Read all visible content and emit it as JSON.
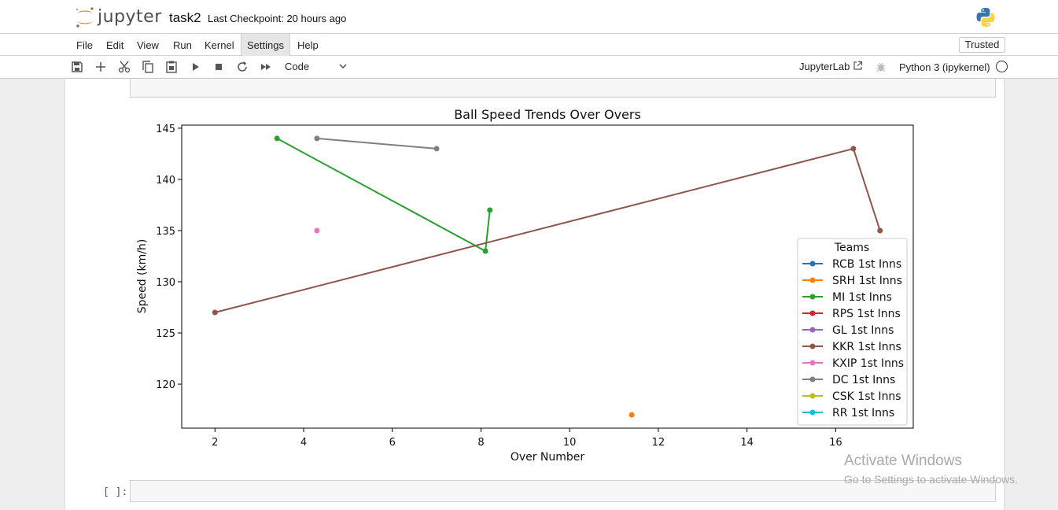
{
  "header": {
    "logo_text": "jupyter",
    "notebook_name": "task2",
    "checkpoint": "Last Checkpoint: 20 hours ago"
  },
  "menu": {
    "items": [
      "File",
      "Edit",
      "View",
      "Run",
      "Kernel",
      "Settings",
      "Help"
    ],
    "active": "Settings",
    "trusted": "Trusted"
  },
  "toolbar": {
    "icons": [
      "save-icon",
      "add-icon",
      "cut-icon",
      "copy-icon",
      "paste-icon",
      "run-icon",
      "stop-icon",
      "restart-icon",
      "fast-forward-icon"
    ],
    "cell_type": "Code",
    "jupyterlab": "JupyterLab",
    "kernel": "Python 3 (ipykernel)"
  },
  "cell": {
    "next_prompt": "[ ]:"
  },
  "watermark": {
    "line1": "Activate Windows",
    "line2": "Go to Settings to activate Windows."
  },
  "chart_data": {
    "type": "line",
    "title": "Ball Speed Trends Over Overs",
    "xlabel": "Over Number",
    "ylabel": "Speed (km/h)",
    "xlim": [
      1.25,
      17.75
    ],
    "ylim": [
      115.7,
      145.3
    ],
    "xticks": [
      2,
      4,
      6,
      8,
      10,
      12,
      14,
      16
    ],
    "yticks": [
      120,
      125,
      130,
      135,
      140,
      145
    ],
    "grid": false,
    "legend": {
      "title": "Teams",
      "position": "right"
    },
    "series": [
      {
        "name": "RCB 1st Inns",
        "color": "#1f77b4",
        "points": []
      },
      {
        "name": "SRH 1st Inns",
        "color": "#ff7f0e",
        "points": [
          [
            11.4,
            117
          ]
        ]
      },
      {
        "name": "MI 1st Inns",
        "color": "#2ca02c",
        "points": [
          [
            3.4,
            144
          ],
          [
            8.1,
            133
          ],
          [
            8.2,
            137
          ]
        ]
      },
      {
        "name": "RPS 1st Inns",
        "color": "#d62728",
        "points": []
      },
      {
        "name": "GL 1st Inns",
        "color": "#9467bd",
        "points": []
      },
      {
        "name": "KKR 1st Inns",
        "color": "#8c564b",
        "points": [
          [
            2,
            127
          ],
          [
            16.4,
            143
          ],
          [
            17,
            135
          ]
        ]
      },
      {
        "name": "KXIP 1st Inns",
        "color": "#e377c2",
        "points": [
          [
            4.3,
            135
          ]
        ]
      },
      {
        "name": "DC 1st Inns",
        "color": "#7f7f7f",
        "points": [
          [
            4.3,
            144
          ],
          [
            7,
            143
          ]
        ]
      },
      {
        "name": "CSK 1st Inns",
        "color": "#bcbd22",
        "points": []
      },
      {
        "name": "RR 1st Inns",
        "color": "#17becf",
        "points": []
      }
    ]
  }
}
